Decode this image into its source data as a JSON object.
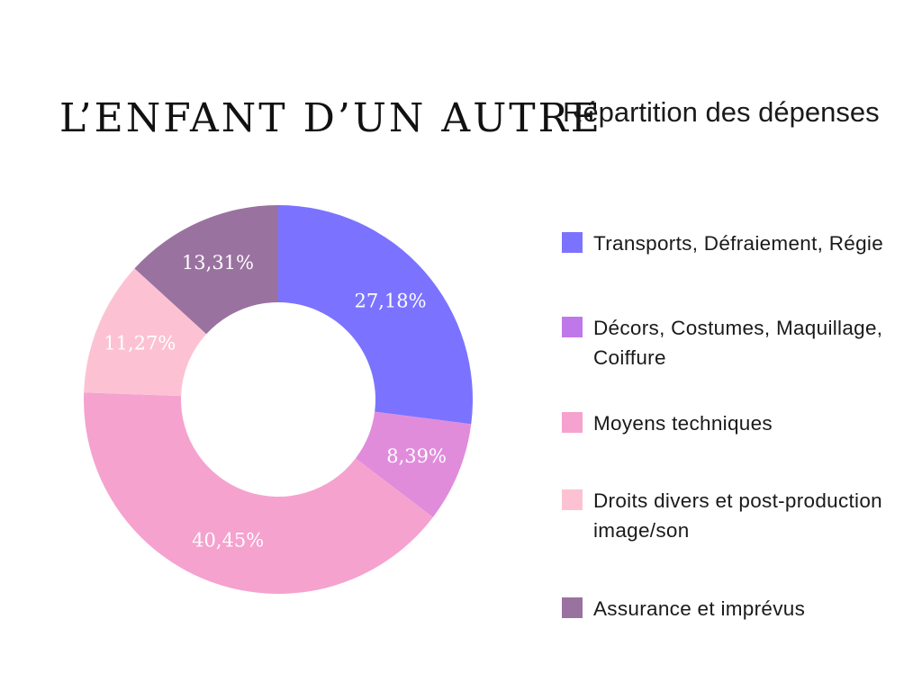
{
  "title": "L’ENFANT D’UN AUTRE",
  "chart_data": {
    "type": "pie",
    "title": "Répartition des dépenses",
    "variant": "donut",
    "legend_position": "right",
    "slices": [
      {
        "name": "Transports, Défraiement, Régie",
        "value": 27.18,
        "label": "27,18%",
        "color": "#7b73ff"
      },
      {
        "name": "Décors, Costumes, Maquillage, Coiffure",
        "value": 8.39,
        "label": "8,39%",
        "color": "#e08cdb"
      },
      {
        "name": "Moyens techniques",
        "value": 40.45,
        "label": "40,45%",
        "color": "#f5a2cf"
      },
      {
        "name": "Droits divers et post-production image/son",
        "value": 11.27,
        "label": "11,27%",
        "color": "#fcc2d3"
      },
      {
        "name": "Assurance et imprévus",
        "value": 13.31,
        "label": "13,31%",
        "color": "#9a72a0"
      }
    ],
    "legend": [
      {
        "label": "Transports, Défraiement, Régie",
        "color": "#7b73ff"
      },
      {
        "label": "Décors, Costumes, Maquillage, Coiffure",
        "color": "#bf78ea"
      },
      {
        "label": "Moyens techniques",
        "color": "#f5a2cf"
      },
      {
        "label": "Droits divers et post-production image/son",
        "color": "#fcc2d3"
      },
      {
        "label": "Assurance et imprévus",
        "color": "#9a72a0"
      }
    ]
  }
}
